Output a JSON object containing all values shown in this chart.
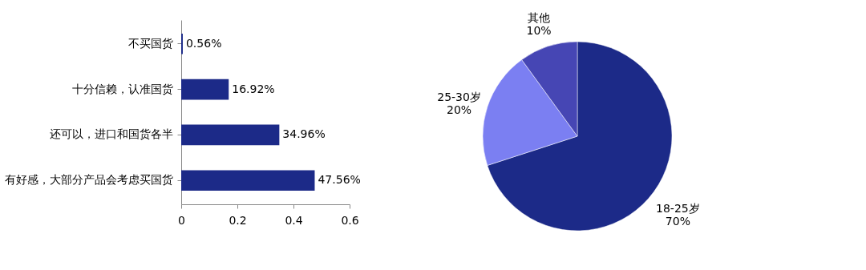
{
  "chart_data": [
    {
      "type": "bar",
      "orientation": "horizontal",
      "categories": [
        "不买国货",
        "十分信赖，认准国货",
        "还可以，进口和国货各半",
        "有好感，大部分产品会考虑买国货"
      ],
      "values": [
        0.0056,
        0.1692,
        0.3496,
        0.4756
      ],
      "color": "#1c2a88",
      "value_labels": [
        "0.56%",
        "16.92%",
        "34.96%",
        "47.56%"
      ],
      "xlim": [
        0,
        0.6
      ],
      "xticks": [
        0,
        0.2,
        0.4,
        0.6
      ],
      "grid": false
    },
    {
      "type": "pie",
      "categories": [
        "18-25岁",
        "25-30岁",
        "其他"
      ],
      "values": [
        70,
        20,
        10
      ],
      "colors": [
        "#1c2a88",
        "#7b7ff2",
        "#4646b4"
      ],
      "value_labels": [
        "70%",
        "20%",
        "10%"
      ],
      "legend": false
    }
  ]
}
